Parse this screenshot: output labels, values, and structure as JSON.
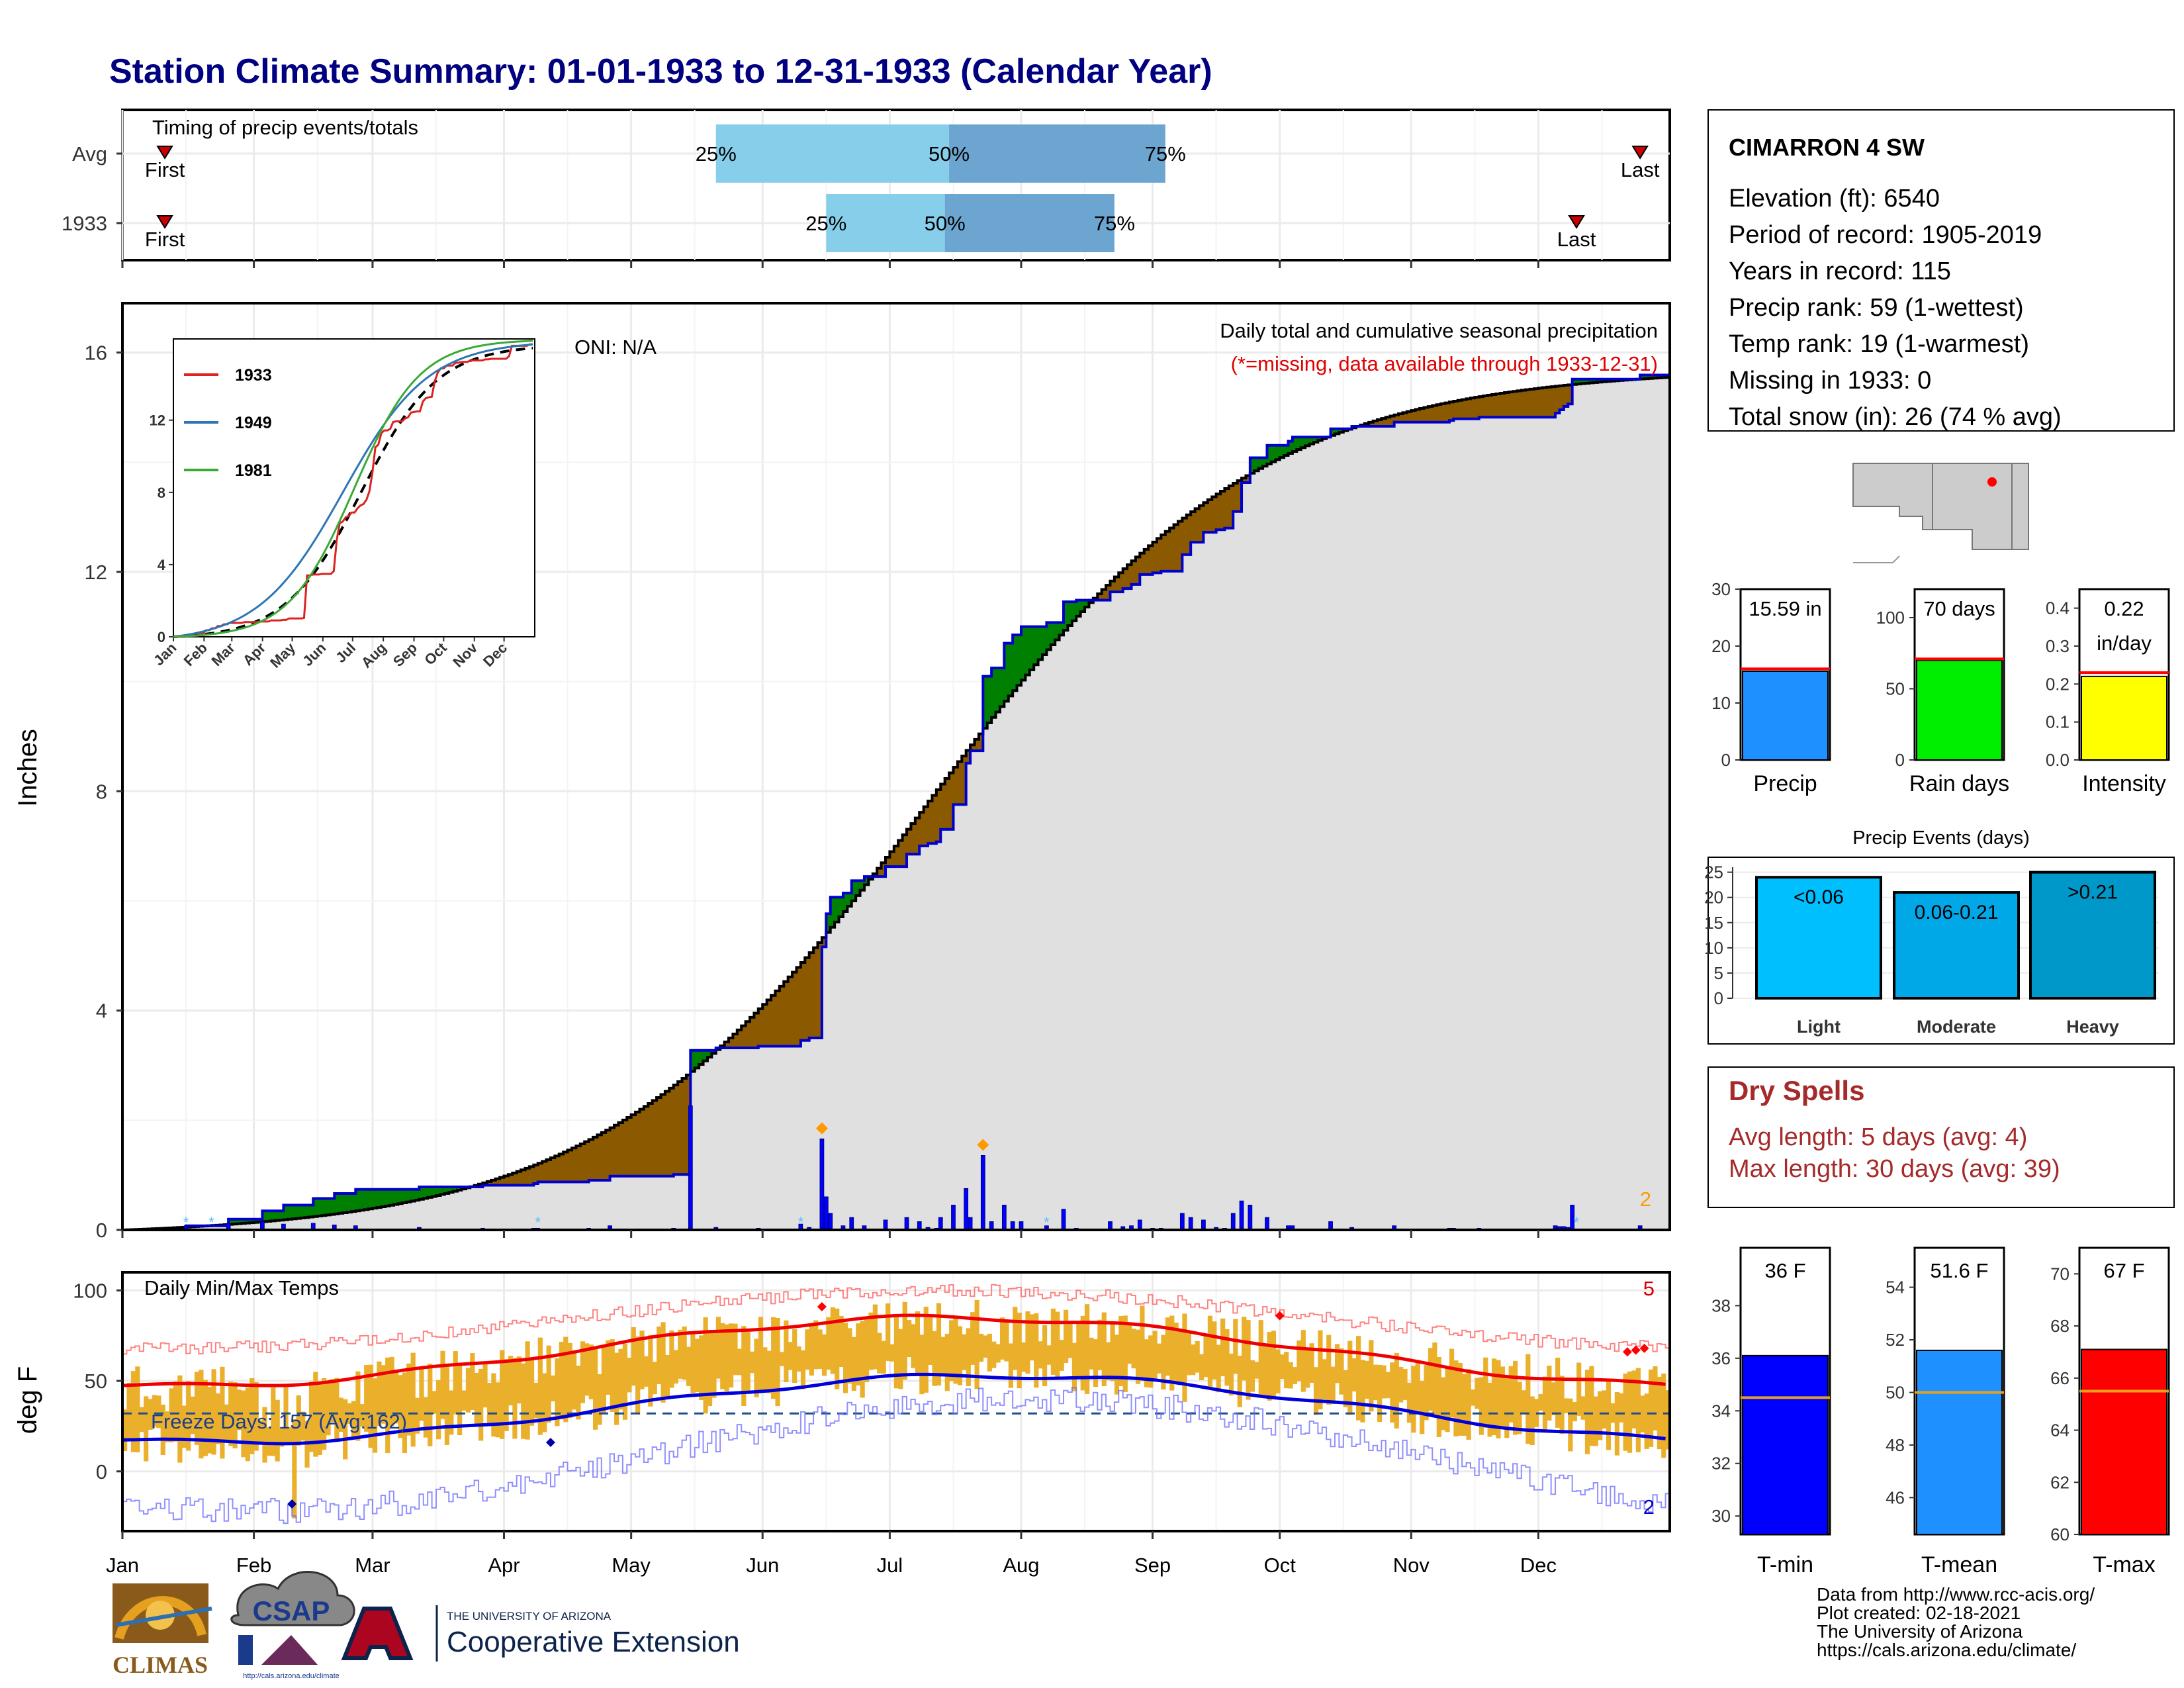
{
  "title": "Station Climate Summary: 01-01-1933 to 12-31-1933 (Calendar Year)",
  "months": [
    "Jan",
    "Feb",
    "Mar",
    "Apr",
    "May",
    "Jun",
    "Jul",
    "Aug",
    "Sep",
    "Oct",
    "Nov",
    "Dec"
  ],
  "timing": {
    "title": "Timing of precip events/totals",
    "rows": [
      {
        "label": "Avg",
        "first": "First",
        "last": "Last",
        "q25": "25%",
        "q50": "50%",
        "q75": "75%",
        "first_doy": 10,
        "last_doy": 358,
        "q25_doy": 140,
        "q50_doy": 195,
        "q75_doy": 246
      },
      {
        "label": "1933",
        "first": "First",
        "last": "Last",
        "q25": "25%",
        "q50": "50%",
        "q75": "75%",
        "first_doy": 10,
        "last_doy": 343,
        "q25_doy": 166,
        "q50_doy": 194,
        "q75_doy": 234
      }
    ],
    "colors": {
      "light": "#87ceeb",
      "dark": "#6ba5d0",
      "marker": "#cc0000"
    }
  },
  "station": {
    "name": "CIMARRON 4 SW",
    "lines": [
      "Elevation (ft): 6540",
      "Period of record: 1905-2019",
      "Years in record: 115",
      "Precip rank: 59 (1-wettest)",
      "Temp rank: 19 (1-warmest)",
      "Missing in 1933: 0",
      "Total snow (in): 26 (74 % avg)"
    ]
  },
  "precip_panel": {
    "ylabel": "Inches",
    "oni": "ONI: N/A",
    "title": "Daily total and cumulative seasonal precipitation",
    "subtitle": "(*=missing, data available through 1933-12-31)",
    "corner_value": "2",
    "yticks": [
      0,
      4,
      8,
      12,
      16
    ],
    "colors": {
      "above": "#008000",
      "below": "#8b5a00",
      "fill": "#e0e0e0",
      "line": "#0000cc"
    }
  },
  "inset": {
    "legend": [
      "1933",
      "1949",
      "1981"
    ],
    "legend_colors": [
      "#dd2222",
      "#2e75b6",
      "#3aaa35"
    ],
    "yticks": [
      0,
      4,
      8,
      12
    ],
    "xticks": [
      "Jan",
      "Feb",
      "Mar",
      "Apr",
      "May",
      "Jun",
      "Jul",
      "Aug",
      "Sep",
      "Oct",
      "Nov",
      "Dec"
    ]
  },
  "temp_panel": {
    "ylabel": "deg F",
    "title": "Daily Min/Max Temps",
    "freeze": "Freeze Days: 157 (Avg:162)",
    "corner_hi": "5",
    "corner_lo": "2",
    "yticks": [
      0,
      50,
      100
    ]
  },
  "mini_bars": [
    {
      "label": "Precip",
      "value_text": "15.59 in",
      "value": 15.59,
      "avg": 16.0,
      "ymax": 30,
      "yticks": [
        "0",
        "10",
        "20",
        "30"
      ],
      "color": "#1e90ff"
    },
    {
      "label": "Rain days",
      "value_text": "70 days",
      "value": 70,
      "avg": 71,
      "ymax": 120,
      "yticks": [
        "0",
        "50",
        "100"
      ],
      "color": "#00ee00"
    },
    {
      "label": "Intensity",
      "value_text_1": "0.22",
      "value_text_2": "in/day",
      "value": 0.22,
      "avg": 0.23,
      "ymax": 0.45,
      "yticks": [
        "0.0",
        "0.1",
        "0.2",
        "0.3",
        "0.4"
      ],
      "color": "#ffff00"
    }
  ],
  "events": {
    "title": "Precip Events (days)",
    "yticks": [
      "0",
      "5",
      "10",
      "15",
      "20",
      "25"
    ],
    "bars": [
      {
        "label": "Light",
        "text": "<0.06",
        "value": 24,
        "color": "#00bfff"
      },
      {
        "label": "Moderate",
        "text": "0.06-0.21",
        "value": 21,
        "color": "#00a8e8"
      },
      {
        "label": "Heavy",
        "text": ">0.21",
        "value": 25,
        "color": "#0098c8"
      }
    ]
  },
  "dry_spells": {
    "title": "Dry Spells",
    "line1": "Avg length: 5 days (avg: 4)",
    "line2": "Max length: 30 days (avg: 39)"
  },
  "temp_bars": [
    {
      "label": "T-min",
      "value_text": "36 F",
      "value": 36.1,
      "avg": 34.5,
      "ymin": 29.3,
      "ymax": 40.2,
      "yticks": [
        "30",
        "32",
        "34",
        "36",
        "38"
      ],
      "color": "#0000ff"
    },
    {
      "label": "T-mean",
      "value_text": "51.6 F",
      "value": 51.6,
      "avg": 50.0,
      "ymin": 44.6,
      "ymax": 55.5,
      "yticks": [
        "46",
        "48",
        "50",
        "52",
        "54"
      ],
      "color": "#1e90ff"
    },
    {
      "label": "T-max",
      "value_text": "67 F",
      "value": 67.1,
      "avg": 65.5,
      "ymin": 60.0,
      "ymax": 71.0,
      "yticks": [
        "60",
        "62",
        "64",
        "66",
        "68",
        "70"
      ],
      "color": "#ff0000"
    }
  ],
  "footer": {
    "lines": [
      "Data from http://www.rcc-acis.org/",
      "Plot created: 02-18-2021",
      "The University of Arizona",
      "https://cals.arizona.edu/climate/"
    ],
    "climas": "CLIMAS",
    "csap": "CSAP",
    "csap_url": "http://cals.arizona.edu/climate",
    "ua_small": "THE UNIVERSITY OF ARIZONA",
    "ua_big": "Cooperative Extension"
  }
}
